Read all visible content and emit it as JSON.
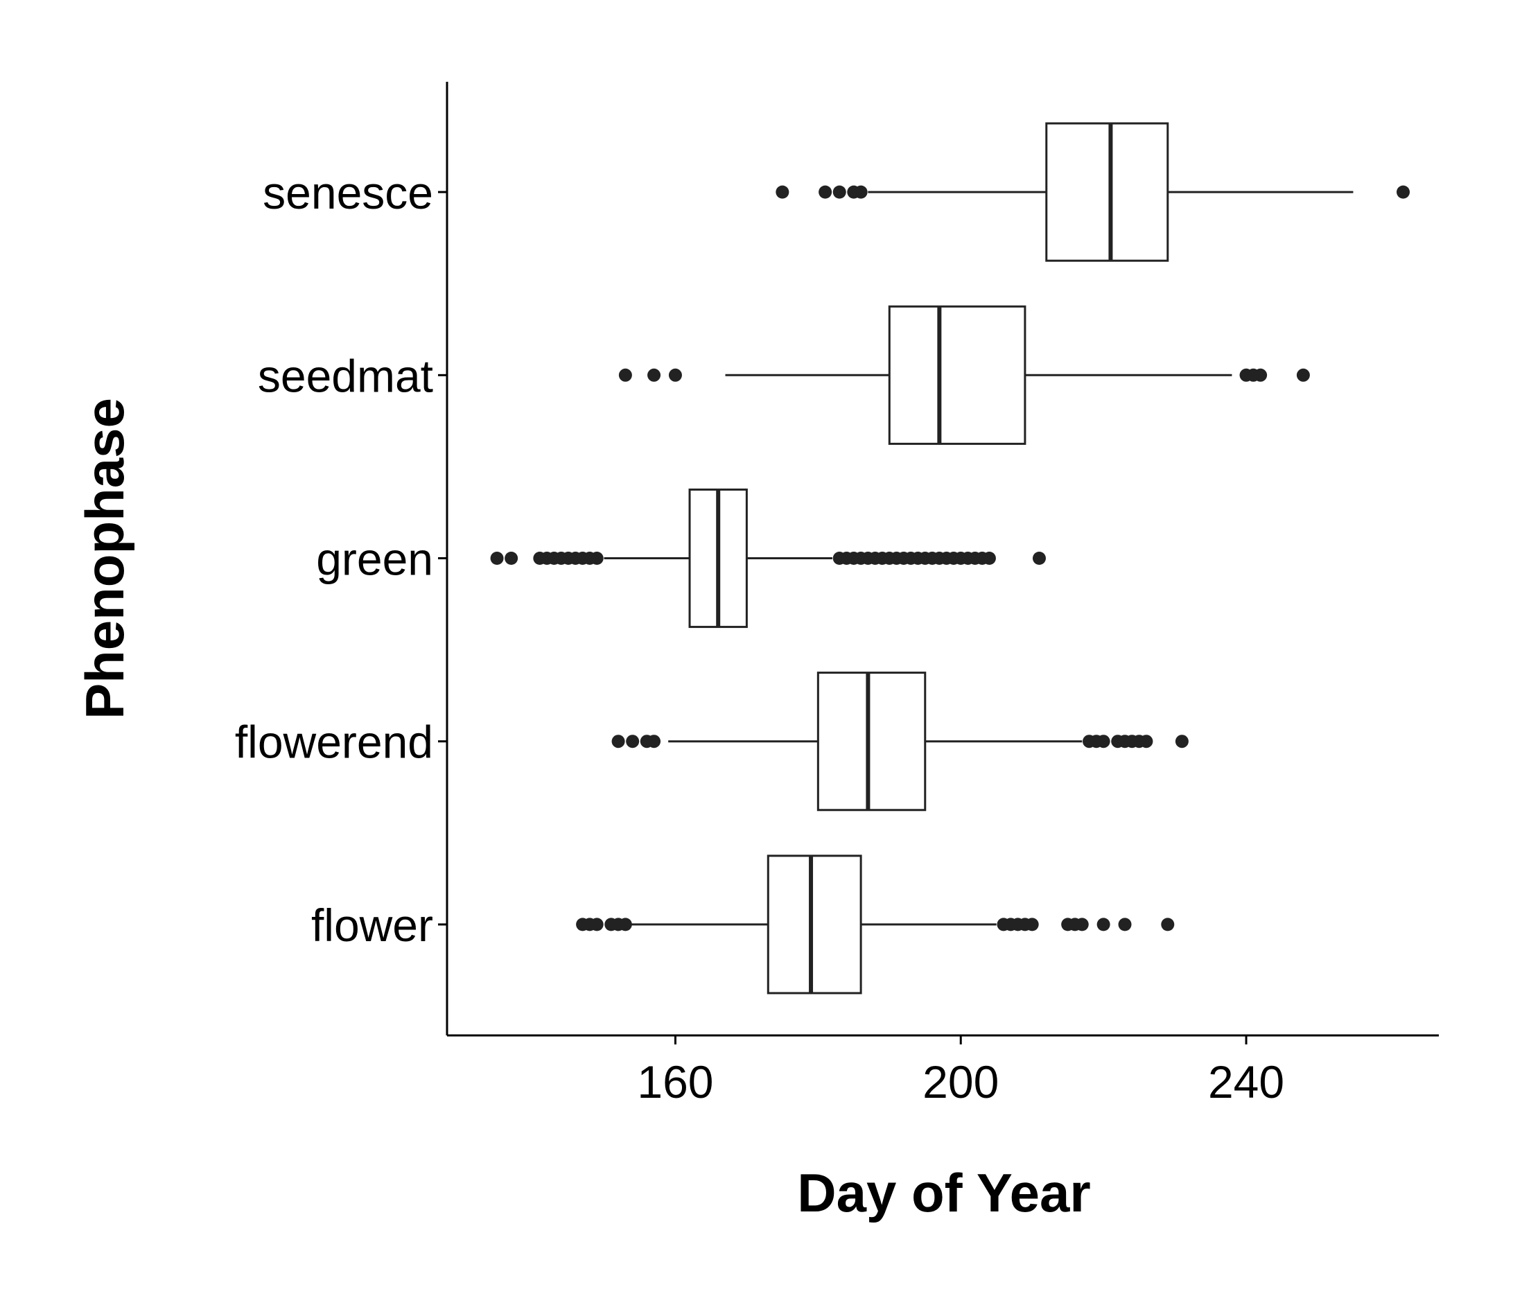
{
  "chart_data": {
    "type": "boxplot",
    "orientation": "horizontal",
    "title": "",
    "xlabel": "Day of Year",
    "ylabel": "Phenophase",
    "xlim": [
      128,
      267
    ],
    "xticks": [
      160,
      200,
      240
    ],
    "grid": false,
    "legend": "none",
    "colors": {
      "box_fill": "#ffffff",
      "line": "#222222",
      "outlier": "#222222",
      "axis": "#000000"
    },
    "categories": [
      "flower",
      "flowerend",
      "green",
      "seedmat",
      "senesce"
    ],
    "boxes": [
      {
        "category": "flower",
        "whisker_low": 153,
        "q1": 173,
        "median": 179,
        "q3": 186,
        "whisker_high": 205,
        "outliers": [
          147,
          148,
          149,
          151,
          152,
          153,
          206,
          207,
          208,
          209,
          210,
          215,
          216,
          217,
          220,
          223,
          229
        ]
      },
      {
        "category": "flowerend",
        "whisker_low": 159,
        "q1": 180,
        "median": 187,
        "q3": 195,
        "whisker_high": 217,
        "outliers": [
          152,
          154,
          156,
          157,
          218,
          219,
          220,
          222,
          223,
          224,
          225,
          226,
          231
        ]
      },
      {
        "category": "green",
        "whisker_low": 150,
        "q1": 162,
        "median": 166,
        "q3": 170,
        "whisker_high": 182,
        "outliers": [
          135,
          137,
          141,
          142,
          143,
          144,
          145,
          146,
          147,
          148,
          149,
          183,
          184,
          185,
          186,
          187,
          188,
          189,
          190,
          191,
          192,
          193,
          194,
          195,
          196,
          197,
          198,
          199,
          200,
          201,
          202,
          203,
          204,
          211
        ]
      },
      {
        "category": "seedmat",
        "whisker_low": 167,
        "q1": 190,
        "median": 197,
        "q3": 209,
        "whisker_high": 238,
        "outliers": [
          153,
          157,
          160,
          240,
          241,
          242,
          248
        ]
      },
      {
        "category": "senesce",
        "whisker_low": 187,
        "q1": 212,
        "median": 221,
        "q3": 229,
        "whisker_high": 255,
        "outliers": [
          175,
          181,
          183,
          185,
          186,
          262
        ]
      }
    ]
  }
}
